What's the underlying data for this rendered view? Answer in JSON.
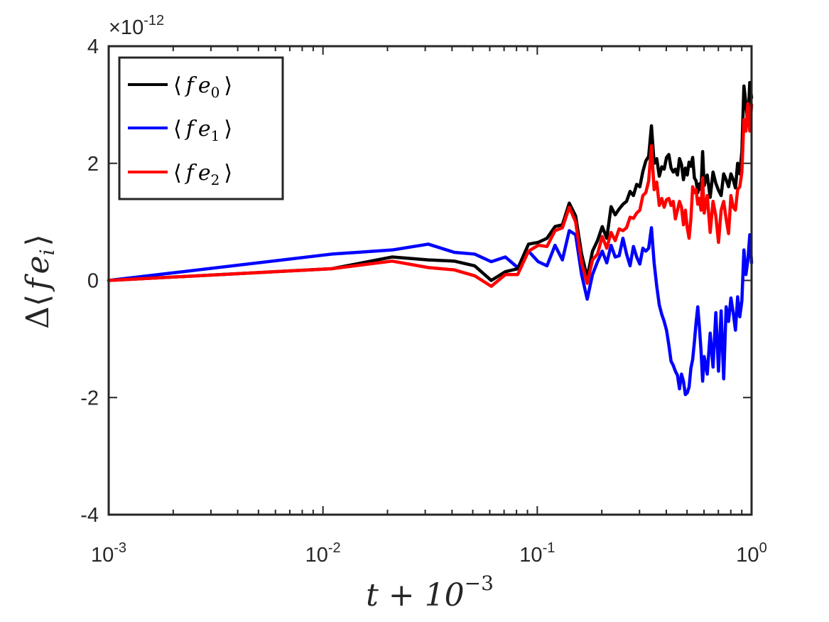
{
  "chart_data": {
    "type": "line",
    "title": "",
    "x_scale": "log",
    "xlim": [
      0.001,
      1
    ],
    "ylim": [
      -4,
      4
    ],
    "xlabel": {
      "main": "t + 10",
      "sup": "−3"
    },
    "ylabel": {
      "delta": "Δ",
      "bracket_open": "⟨",
      "f": "f",
      "e": "e",
      "sub": "i",
      "bracket_close": "⟩"
    },
    "y_scale_factor": {
      "prefix": "×10",
      "exponent": "-12"
    },
    "x_tick_labels": [
      {
        "value": 0.001,
        "base": "10",
        "exp": "-3"
      },
      {
        "value": 0.01,
        "base": "10",
        "exp": "-2"
      },
      {
        "value": 0.1,
        "base": "10",
        "exp": "-1"
      },
      {
        "value": 1,
        "base": "10",
        "exp": "0"
      }
    ],
    "y_ticks": [
      {
        "value": -4,
        "label": "-4"
      },
      {
        "value": -2,
        "label": "-2"
      },
      {
        "value": 0,
        "label": "0"
      },
      {
        "value": 2,
        "label": "2"
      },
      {
        "value": 4,
        "label": "4"
      }
    ],
    "grid": false,
    "legend_position": "top-left",
    "series": [
      {
        "name": "e0",
        "label": {
          "open": "⟨",
          "f": "f",
          "e": "e",
          "sub": "0",
          "close": "⟩"
        },
        "color": "#000000",
        "points": [
          [
            0.001,
            0
          ],
          [
            0.011,
            0.2
          ],
          [
            0.021,
            0.4
          ],
          [
            0.031,
            0.35
          ],
          [
            0.041,
            0.33
          ],
          [
            0.051,
            0.25
          ],
          [
            0.061,
            0
          ],
          [
            0.071,
            0.15
          ],
          [
            0.081,
            0.2
          ],
          [
            0.091,
            0.62
          ],
          [
            0.101,
            0.65
          ],
          [
            0.111,
            0.72
          ],
          [
            0.121,
            0.92
          ],
          [
            0.131,
            0.95
          ],
          [
            0.141,
            1.32
          ],
          [
            0.151,
            1.1
          ],
          [
            0.161,
            0.45
          ],
          [
            0.171,
            0.05
          ],
          [
            0.181,
            0.5
          ],
          [
            0.191,
            0.68
          ],
          [
            0.201,
            0.92
          ],
          [
            0.211,
            0.72
          ],
          [
            0.221,
            1.26
          ],
          [
            0.231,
            1.12
          ],
          [
            0.241,
            1.22
          ],
          [
            0.251,
            1.3
          ],
          [
            0.261,
            1.35
          ],
          [
            0.271,
            1.52
          ],
          [
            0.281,
            1.45
          ],
          [
            0.291,
            1.64
          ],
          [
            0.301,
            1.6
          ],
          [
            0.311,
            1.86
          ],
          [
            0.321,
            2.04
          ],
          [
            0.331,
            2.12
          ],
          [
            0.341,
            2.64
          ],
          [
            0.351,
            2.0
          ],
          [
            0.361,
            2.08
          ],
          [
            0.371,
            1.78
          ],
          [
            0.381,
            1.94
          ],
          [
            0.391,
            1.9
          ],
          [
            0.401,
            2.1
          ],
          [
            0.411,
            2.15
          ],
          [
            0.421,
            1.92
          ],
          [
            0.431,
            1.85
          ],
          [
            0.441,
            1.9
          ],
          [
            0.451,
            1.8
          ],
          [
            0.461,
            2.08
          ],
          [
            0.471,
            1.98
          ],
          [
            0.481,
            1.72
          ],
          [
            0.491,
            1.92
          ],
          [
            0.501,
            1.8
          ],
          [
            0.511,
            2.02
          ],
          [
            0.521,
            1.95
          ],
          [
            0.531,
            2.1
          ],
          [
            0.541,
            1.75
          ],
          [
            0.551,
            1.7
          ],
          [
            0.561,
            1.5
          ],
          [
            0.571,
            1.65
          ],
          [
            0.581,
            1.55
          ],
          [
            0.591,
            2.2
          ],
          [
            0.601,
            1.62
          ],
          [
            0.621,
            1.8
          ],
          [
            0.641,
            1.42
          ],
          [
            0.661,
            1.85
          ],
          [
            0.681,
            1.66
          ],
          [
            0.701,
            1.54
          ],
          [
            0.721,
            1.45
          ],
          [
            0.741,
            1.82
          ],
          [
            0.761,
            1.72
          ],
          [
            0.781,
            1.6
          ],
          [
            0.801,
            1.82
          ],
          [
            0.821,
            1.72
          ],
          [
            0.841,
            1.58
          ],
          [
            0.861,
            2.0
          ],
          [
            0.881,
            1.82
          ],
          [
            0.901,
            2.2
          ],
          [
            0.921,
            3.32
          ],
          [
            0.941,
            3.02
          ],
          [
            0.961,
            2.65
          ],
          [
            0.981,
            3.38
          ],
          [
            1.0,
            3.12
          ]
        ]
      },
      {
        "name": "e1",
        "label": {
          "open": "⟨",
          "f": "f",
          "e": "e",
          "sub": "1",
          "close": "⟩"
        },
        "color": "#0000ff",
        "points": [
          [
            0.001,
            0
          ],
          [
            0.011,
            0.45
          ],
          [
            0.021,
            0.52
          ],
          [
            0.031,
            0.62
          ],
          [
            0.041,
            0.48
          ],
          [
            0.051,
            0.45
          ],
          [
            0.061,
            0.32
          ],
          [
            0.071,
            0.4
          ],
          [
            0.081,
            0.22
          ],
          [
            0.091,
            0.5
          ],
          [
            0.101,
            0.32
          ],
          [
            0.111,
            0.25
          ],
          [
            0.121,
            0.6
          ],
          [
            0.131,
            0.35
          ],
          [
            0.141,
            0.85
          ],
          [
            0.151,
            0.78
          ],
          [
            0.161,
            0.1
          ],
          [
            0.171,
            -0.32
          ],
          [
            0.181,
            0.1
          ],
          [
            0.191,
            0.32
          ],
          [
            0.201,
            0.5
          ],
          [
            0.211,
            0.3
          ],
          [
            0.221,
            0.6
          ],
          [
            0.231,
            0.4
          ],
          [
            0.241,
            0.42
          ],
          [
            0.251,
            0.72
          ],
          [
            0.261,
            0.45
          ],
          [
            0.271,
            0.25
          ],
          [
            0.281,
            0.58
          ],
          [
            0.291,
            0.4
          ],
          [
            0.301,
            0.28
          ],
          [
            0.311,
            0.55
          ],
          [
            0.321,
            0.5
          ],
          [
            0.331,
            0.55
          ],
          [
            0.341,
            0.9
          ],
          [
            0.351,
            0.3
          ],
          [
            0.361,
            -0.1
          ],
          [
            0.371,
            -0.42
          ],
          [
            0.381,
            -0.58
          ],
          [
            0.391,
            -0.7
          ],
          [
            0.401,
            -0.85
          ],
          [
            0.411,
            -1.1
          ],
          [
            0.421,
            -1.38
          ],
          [
            0.431,
            -1.45
          ],
          [
            0.441,
            -1.55
          ],
          [
            0.451,
            -1.62
          ],
          [
            0.461,
            -1.85
          ],
          [
            0.471,
            -1.6
          ],
          [
            0.481,
            -1.72
          ],
          [
            0.491,
            -1.95
          ],
          [
            0.501,
            -1.92
          ],
          [
            0.511,
            -1.82
          ],
          [
            0.521,
            -1.5
          ],
          [
            0.531,
            -1.35
          ],
          [
            0.541,
            -1.05
          ],
          [
            0.551,
            -0.72
          ],
          [
            0.561,
            -0.45
          ],
          [
            0.571,
            -0.8
          ],
          [
            0.581,
            -1.2
          ],
          [
            0.591,
            -1.72
          ],
          [
            0.601,
            -1.3
          ],
          [
            0.621,
            -1.6
          ],
          [
            0.641,
            -0.9
          ],
          [
            0.661,
            -1.48
          ],
          [
            0.681,
            -0.55
          ],
          [
            0.701,
            -1.55
          ],
          [
            0.721,
            -0.52
          ],
          [
            0.741,
            -1.68
          ],
          [
            0.761,
            -0.45
          ],
          [
            0.781,
            -0.7
          ],
          [
            0.801,
            -0.3
          ],
          [
            0.821,
            -0.55
          ],
          [
            0.841,
            -0.85
          ],
          [
            0.861,
            -0.28
          ],
          [
            0.881,
            -0.62
          ],
          [
            0.901,
            -0.35
          ],
          [
            0.921,
            0.52
          ],
          [
            0.941,
            0.1
          ],
          [
            0.961,
            0.35
          ],
          [
            0.981,
            0.78
          ],
          [
            1.0,
            0.3
          ]
        ]
      },
      {
        "name": "e2",
        "label": {
          "open": "⟨",
          "f": "f",
          "e": "e",
          "sub": "2",
          "close": "⟩"
        },
        "color": "#ff0000",
        "points": [
          [
            0.001,
            0
          ],
          [
            0.011,
            0.2
          ],
          [
            0.021,
            0.33
          ],
          [
            0.031,
            0.22
          ],
          [
            0.041,
            0.18
          ],
          [
            0.051,
            0.08
          ],
          [
            0.061,
            -0.1
          ],
          [
            0.071,
            0.1
          ],
          [
            0.081,
            0.1
          ],
          [
            0.091,
            0.5
          ],
          [
            0.101,
            0.6
          ],
          [
            0.111,
            0.58
          ],
          [
            0.121,
            0.85
          ],
          [
            0.131,
            0.9
          ],
          [
            0.141,
            1.25
          ],
          [
            0.151,
            1.0
          ],
          [
            0.161,
            0.3
          ],
          [
            0.171,
            -0.05
          ],
          [
            0.181,
            0.35
          ],
          [
            0.191,
            0.45
          ],
          [
            0.201,
            0.75
          ],
          [
            0.211,
            0.55
          ],
          [
            0.221,
            0.82
          ],
          [
            0.231,
            0.68
          ],
          [
            0.241,
            0.88
          ],
          [
            0.251,
            0.85
          ],
          [
            0.261,
            0.9
          ],
          [
            0.271,
            1.08
          ],
          [
            0.281,
            1.06
          ],
          [
            0.291,
            1.15
          ],
          [
            0.301,
            1.2
          ],
          [
            0.311,
            1.45
          ],
          [
            0.321,
            1.5
          ],
          [
            0.331,
            1.7
          ],
          [
            0.341,
            2.3
          ],
          [
            0.351,
            1.55
          ],
          [
            0.361,
            1.68
          ],
          [
            0.371,
            1.28
          ],
          [
            0.381,
            1.4
          ],
          [
            0.391,
            1.25
          ],
          [
            0.401,
            1.38
          ],
          [
            0.411,
            1.4
          ],
          [
            0.421,
            1.28
          ],
          [
            0.431,
            1.35
          ],
          [
            0.441,
            1.05
          ],
          [
            0.451,
            1.2
          ],
          [
            0.461,
            1.35
          ],
          [
            0.471,
            1.25
          ],
          [
            0.481,
            0.95
          ],
          [
            0.491,
            1.2
          ],
          [
            0.501,
            0.9
          ],
          [
            0.511,
            0.72
          ],
          [
            0.521,
            1.05
          ],
          [
            0.531,
            1.6
          ],
          [
            0.541,
            1.5
          ],
          [
            0.551,
            1.55
          ],
          [
            0.561,
            1.3
          ],
          [
            0.571,
            1.4
          ],
          [
            0.581,
            1.2
          ],
          [
            0.591,
            1.75
          ],
          [
            0.601,
            1.15
          ],
          [
            0.621,
            1.45
          ],
          [
            0.641,
            0.82
          ],
          [
            0.661,
            1.35
          ],
          [
            0.681,
            1.1
          ],
          [
            0.701,
            0.65
          ],
          [
            0.721,
            1.2
          ],
          [
            0.741,
            1.35
          ],
          [
            0.761,
            1.05
          ],
          [
            0.781,
            0.8
          ],
          [
            0.801,
            1.45
          ],
          [
            0.821,
            1.25
          ],
          [
            0.841,
            1.2
          ],
          [
            0.861,
            1.55
          ],
          [
            0.881,
            1.6
          ],
          [
            0.901,
            1.85
          ],
          [
            0.921,
            2.75
          ],
          [
            0.941,
            2.55
          ],
          [
            0.961,
            3.02
          ],
          [
            0.981,
            2.55
          ],
          [
            1.0,
            3.0
          ]
        ]
      }
    ]
  }
}
